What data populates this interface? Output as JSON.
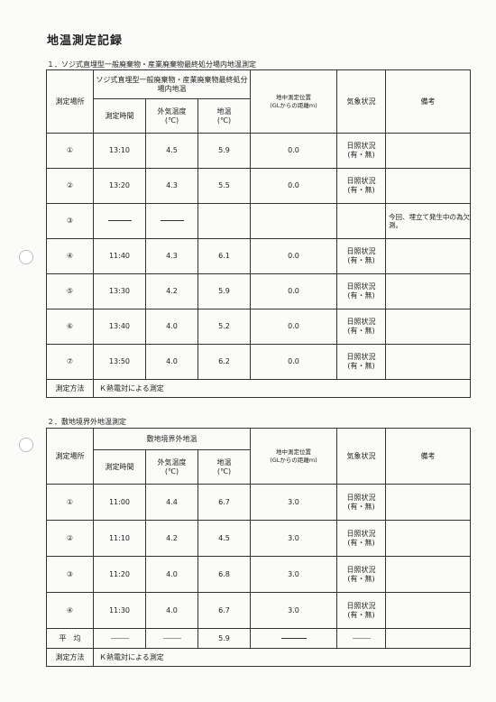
{
  "title": "地温測定記録",
  "section1": {
    "heading": "１．ソジ式直埋型一般廃棄物・産業廃棄物最終処分場内地温測定",
    "header": {
      "location": "測定場所",
      "group_title": "ソジ式直埋型一般廃棄物・産業廃棄物最終処分場内地温",
      "time": "測定時間",
      "air_temp": "外気温度",
      "air_unit": "(℃)",
      "ground_temp": "地温",
      "ground_unit": "(℃)",
      "depth": "地中測定位置",
      "depth_sub": "(GLからの距離m)",
      "weather": "気象状況",
      "remarks": "備考"
    },
    "rows": [
      {
        "id": "①",
        "time": "13:10",
        "air": "4.5",
        "ground": "5.9",
        "depth": "0.0",
        "weather_label": "日照状況",
        "weather_value": "(有・無)",
        "remark": ""
      },
      {
        "id": "②",
        "time": "13:20",
        "air": "4.3",
        "ground": "5.5",
        "depth": "0.0",
        "weather_label": "日照状況",
        "weather_value": "(有・無)",
        "remark": ""
      },
      {
        "id": "③",
        "time": "",
        "air": "",
        "ground": "",
        "depth": "",
        "weather_label": "",
        "weather_value": "",
        "remark": "今回、埋立て発生中の為欠測。"
      },
      {
        "id": "④",
        "time": "11:40",
        "air": "4.3",
        "ground": "6.1",
        "depth": "0.0",
        "weather_label": "日照状況",
        "weather_value": "(有・無)",
        "remark": ""
      },
      {
        "id": "⑤",
        "time": "13:30",
        "air": "4.2",
        "ground": "5.9",
        "depth": "0.0",
        "weather_label": "日照状況",
        "weather_value": "(有・無)",
        "remark": ""
      },
      {
        "id": "⑥",
        "time": "13:40",
        "air": "4.0",
        "ground": "5.2",
        "depth": "0.0",
        "weather_label": "日照状況",
        "weather_value": "(有・無)",
        "remark": ""
      },
      {
        "id": "⑦",
        "time": "13:50",
        "air": "4.0",
        "ground": "6.2",
        "depth": "0.0",
        "weather_label": "日照状況",
        "weather_value": "(有・無)",
        "remark": ""
      }
    ],
    "method_label": "測定方法",
    "method_value": "Ｋ熱電対による測定"
  },
  "section2": {
    "heading": "２．敷地境界外地温測定",
    "header": {
      "location": "測定場所",
      "group_title": "敷地境界外地温",
      "time": "測定時間",
      "air_temp": "外気温度",
      "air_unit": "(℃)",
      "ground_temp": "地温",
      "ground_unit": "(℃)",
      "depth": "地中測定位置",
      "depth_sub": "(GLからの距離m)",
      "weather": "気象状況",
      "remarks": "備考"
    },
    "rows": [
      {
        "id": "①",
        "time": "11:00",
        "air": "4.4",
        "ground": "6.7",
        "depth": "3.0",
        "weather_label": "日照状況",
        "weather_value": "(有・無)"
      },
      {
        "id": "②",
        "time": "11:10",
        "air": "4.2",
        "ground": "4.5",
        "depth": "3.0",
        "weather_label": "日照状況",
        "weather_value": "(有・無)"
      },
      {
        "id": "③",
        "time": "11:20",
        "air": "4.0",
        "ground": "6.8",
        "depth": "3.0",
        "weather_label": "日照状況",
        "weather_value": "(有・無)"
      },
      {
        "id": "④",
        "time": "11:30",
        "air": "4.0",
        "ground": "6.7",
        "depth": "3.0",
        "weather_label": "日照状況",
        "weather_value": "(有・無)"
      }
    ],
    "average_label": "平　均",
    "average_ground": "5.9",
    "method_label": "測定方法",
    "method_value": "Ｋ熱電対による測定"
  }
}
